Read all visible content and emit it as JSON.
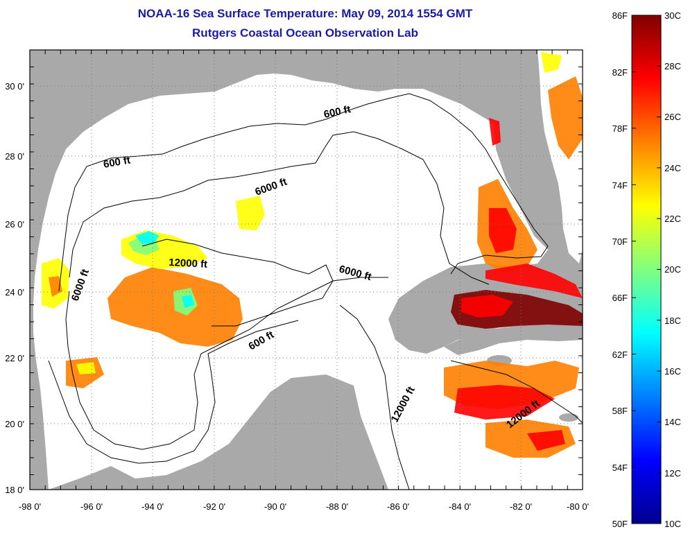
{
  "title": {
    "line1": "NOAA-16 Sea Surface Temperature:  May 09, 2014 1554 GMT",
    "line2": "Rutgers Coastal Ocean Observation Lab"
  },
  "axes": {
    "longitude_labels": [
      "-98 0'",
      "-96 0'",
      "-94 0'",
      "-92 0'",
      "-90 0'",
      "-88 0'",
      "-86 0'",
      "-84 0'",
      "-82 0'",
      "-80 0'"
    ],
    "latitude_labels": [
      "30 0'",
      "28 0'",
      "26 0'",
      "24 0'",
      "22 0'",
      "20 0'",
      "18 0'"
    ]
  },
  "depth_contour_labels": {
    "l600_west": "600 ft",
    "l600_north": "600 ft",
    "l600_south": "600 ft",
    "l6000_north": "6000 ft",
    "l6000_west": "6000 ft",
    "l6000_east": "6000 ft",
    "l12000_center": "12000 ft",
    "l12000_yucatan": "12000 ft",
    "l12000_caribbean": "12000 ft"
  },
  "colorbar": {
    "fahrenheit_labels": [
      "86F",
      "82F",
      "78F",
      "74F",
      "70F",
      "66F",
      "62F",
      "58F",
      "54F",
      "50F"
    ],
    "celsius_labels": [
      "30C",
      "28C",
      "26C",
      "24C",
      "22C",
      "20C",
      "18C",
      "16C",
      "14C",
      "12C",
      "10C"
    ],
    "colors": [
      "#00008f",
      "#0000ff",
      "#0080ff",
      "#00ffff",
      "#80ff80",
      "#ffff00",
      "#ff8000",
      "#ff0000",
      "#800000"
    ]
  },
  "map_colors": {
    "land": "#a9a9a9",
    "ocean_no_data": "#ffffff"
  }
}
